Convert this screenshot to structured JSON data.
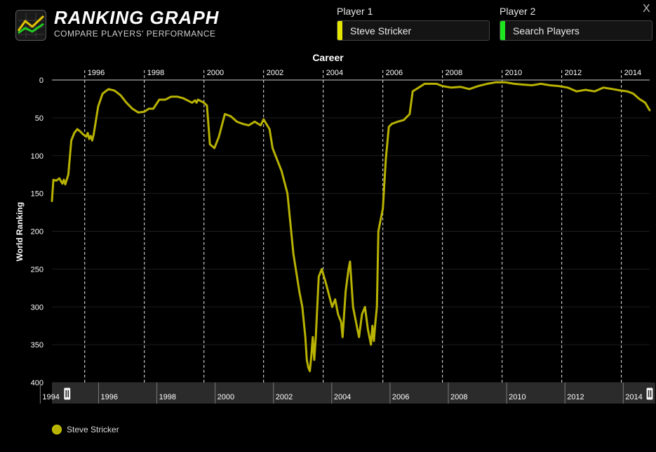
{
  "header": {
    "title": "RANKING GRAPH",
    "subtitle": "COMPARE PLAYERS' PERFORMANCE",
    "close_label": "X"
  },
  "player1": {
    "label": "Player 1",
    "value": "Steve Stricker",
    "color": "#e5e600"
  },
  "player2": {
    "label": "Player 2",
    "placeholder": "Search Players",
    "color": "#1ee61e"
  },
  "legend": {
    "name": "Steve Stricker",
    "color": "#b8b200"
  },
  "chart_data": {
    "type": "line",
    "title": "Career",
    "xlabel": "",
    "ylabel": "World Ranking",
    "xlim": [
      1994.9,
      2014.95
    ],
    "ylim": [
      0,
      400
    ],
    "y_inverted": true,
    "x_ticks": [
      "1996",
      "1998",
      "2000",
      "2002",
      "2004",
      "2006",
      "2008",
      "2010",
      "2012",
      "2014"
    ],
    "y_ticks": [
      "0",
      "50",
      "100",
      "150",
      "200",
      "250",
      "300",
      "350",
      "400"
    ],
    "navigator_ticks": [
      "1994",
      "1996",
      "1998",
      "2000",
      "2002",
      "2004",
      "2006",
      "2008",
      "2010",
      "2012",
      "2014"
    ],
    "navigator_range": [
      1994.9,
      2014.95
    ],
    "series": [
      {
        "name": "Steve Stricker",
        "color": "#b8b200",
        "x": [
          1994.9,
          1994.95,
          1995.05,
          1995.15,
          1995.25,
          1995.3,
          1995.35,
          1995.45,
          1995.55,
          1995.65,
          1995.75,
          1995.85,
          1995.95,
          1996.05,
          1996.1,
          1996.15,
          1996.2,
          1996.25,
          1996.3,
          1996.35,
          1996.45,
          1996.6,
          1996.8,
          1997.0,
          1997.2,
          1997.4,
          1997.6,
          1997.8,
          1998.0,
          1998.15,
          1998.3,
          1998.5,
          1998.7,
          1998.9,
          1999.1,
          1999.3,
          1999.5,
          1999.6,
          1999.7,
          1999.75,
          1999.8,
          1999.9,
          2000.0,
          2000.1,
          2000.2,
          2000.35,
          2000.5,
          2000.7,
          2000.9,
          2001.1,
          2001.3,
          2001.5,
          2001.7,
          2001.9,
          2002.0,
          2002.2,
          2002.3,
          2002.4,
          2002.6,
          2002.8,
          2003.0,
          2003.2,
          2003.3,
          2003.4,
          2003.45,
          2003.5,
          2003.55,
          2003.6,
          2003.65,
          2003.7,
          2003.75,
          2003.8,
          2003.85,
          2003.95,
          2004.1,
          2004.3,
          2004.4,
          2004.5,
          2004.6,
          2004.65,
          2004.75,
          2004.85,
          2004.9,
          2005.0,
          2005.1,
          2005.2,
          2005.3,
          2005.4,
          2005.5,
          2005.55,
          2005.6,
          2005.65,
          2005.7,
          2005.75,
          2005.8,
          2005.85,
          2005.9,
          2006.0,
          2006.1,
          2006.2,
          2006.3,
          2006.5,
          2006.7,
          2006.9,
          2007.0,
          2007.2,
          2007.4,
          2007.6,
          2007.8,
          2008.0,
          2008.3,
          2008.6,
          2008.9,
          2009.2,
          2009.5,
          2009.8,
          2010.1,
          2010.4,
          2010.7,
          2011.0,
          2011.3,
          2011.6,
          2011.9,
          2012.2,
          2012.5,
          2012.8,
          2013.1,
          2013.4,
          2013.7,
          2014.0,
          2014.2,
          2014.4,
          2014.6,
          2014.8,
          2014.95
        ],
        "y": [
          160,
          132,
          133,
          130,
          137,
          132,
          138,
          125,
          80,
          70,
          65,
          68,
          72,
          75,
          70,
          78,
          74,
          80,
          72,
          60,
          35,
          18,
          12,
          14,
          20,
          30,
          38,
          43,
          42,
          38,
          38,
          26,
          26,
          22,
          22,
          24,
          28,
          30,
          27,
          30,
          26,
          28,
          30,
          34,
          85,
          90,
          75,
          45,
          48,
          55,
          58,
          60,
          55,
          60,
          52,
          65,
          90,
          100,
          120,
          150,
          230,
          280,
          300,
          340,
          370,
          380,
          385,
          365,
          340,
          370,
          340,
          300,
          260,
          250,
          270,
          300,
          290,
          310,
          320,
          340,
          280,
          250,
          240,
          300,
          320,
          340,
          310,
          300,
          330,
          340,
          350,
          325,
          345,
          320,
          300,
          200,
          190,
          170,
          105,
          62,
          58,
          55,
          53,
          45,
          15,
          10,
          5,
          5,
          5,
          8,
          10,
          9,
          12,
          8,
          5,
          3,
          3,
          5,
          6,
          7,
          5,
          7,
          8,
          10,
          15,
          13,
          15,
          10,
          12,
          14,
          15,
          18,
          25,
          30,
          40
        ]
      }
    ]
  }
}
